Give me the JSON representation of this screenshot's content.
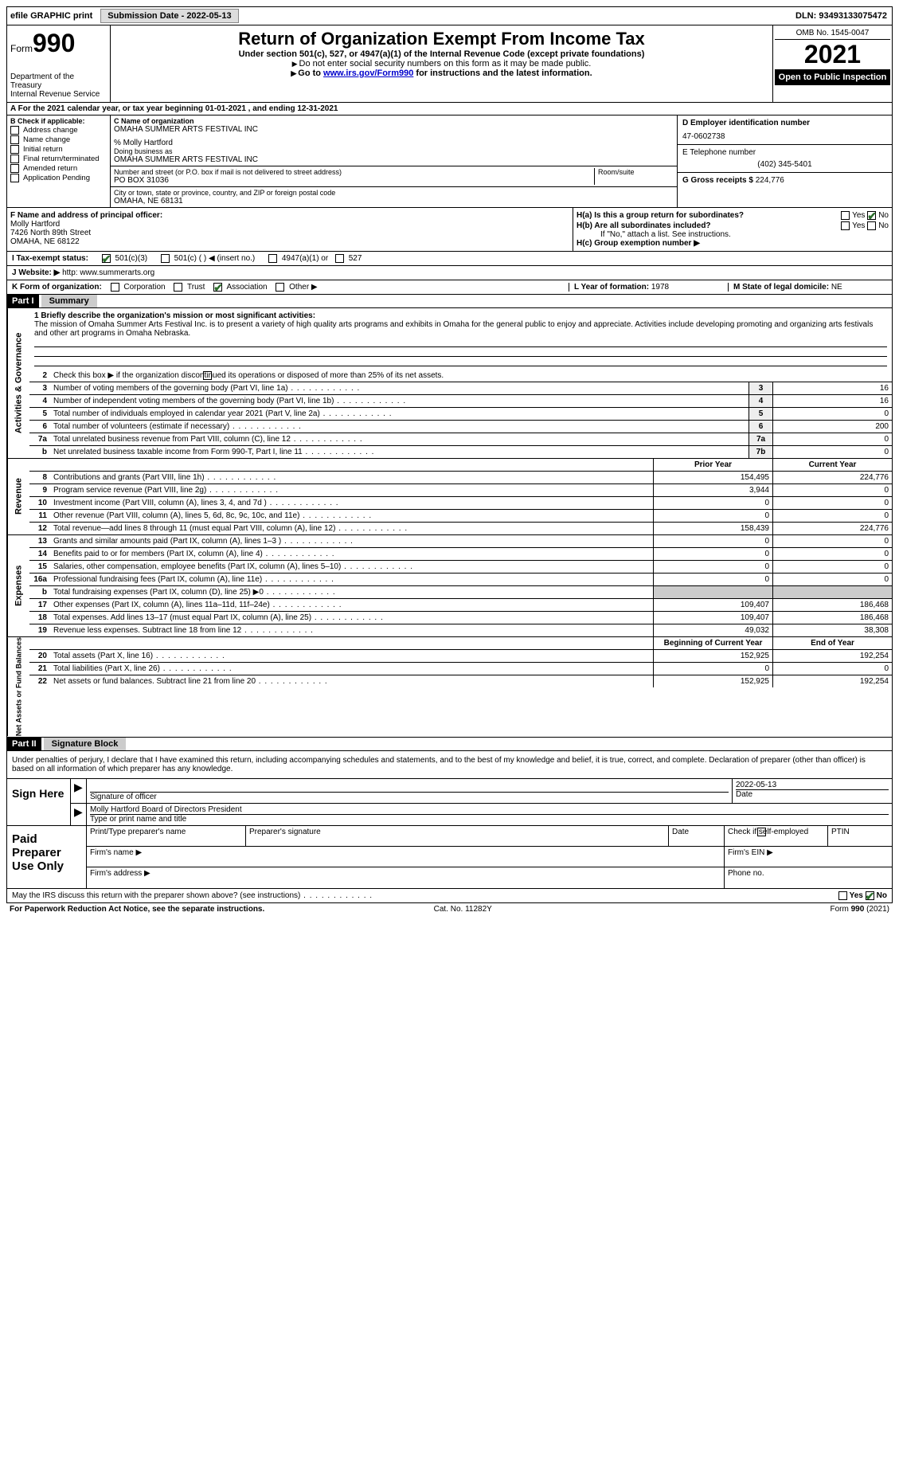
{
  "topbar": {
    "efile": "efile GRAPHIC print",
    "submission_btn": "Submission Date - 2022-05-13",
    "dln": "DLN: 93493133075472"
  },
  "header": {
    "form_label": "Form",
    "form_number": "990",
    "dept": "Department of the Treasury",
    "irs": "Internal Revenue Service",
    "title": "Return of Organization Exempt From Income Tax",
    "subtitle": "Under section 501(c), 527, or 4947(a)(1) of the Internal Revenue Code (except private foundations)",
    "note1": "Do not enter social security numbers on this form as it may be made public.",
    "note2_pre": "Go to ",
    "note2_link": "www.irs.gov/Form990",
    "note2_post": " for instructions and the latest information.",
    "omb": "OMB No. 1545-0047",
    "year": "2021",
    "open": "Open to Public Inspection"
  },
  "taxyear": {
    "text_a": "A For the 2021 calendar year, or tax year beginning ",
    "begin": "01-01-2021",
    "mid": "   , and ending ",
    "end": "12-31-2021"
  },
  "colB": {
    "label": "B Check if applicable:",
    "items": [
      "Address change",
      "Name change",
      "Initial return",
      "Final return/terminated",
      "Amended return",
      "Application Pending"
    ]
  },
  "colC": {
    "name_label": "C Name of organization",
    "name": "OMAHA SUMMER ARTS FESTIVAL INC",
    "care_label": "% Molly Hartford",
    "dba_label": "Doing business as",
    "dba": "OMAHA SUMMER ARTS FESTIVAL INC",
    "street_label": "Number and street (or P.O. box if mail is not delivered to street address)",
    "room_label": "Room/suite",
    "street": "PO BOX 31036",
    "city_label": "City or town, state or province, country, and ZIP or foreign postal code",
    "city": "OMAHA, NE  68131"
  },
  "colD": {
    "ein_label": "D Employer identification number",
    "ein": "47-0602738",
    "tel_label": "E Telephone number",
    "tel": "(402) 345-5401",
    "gross_label": "G Gross receipts $",
    "gross": "224,776"
  },
  "officer": {
    "label": "F  Name and address of principal officer:",
    "name": "Molly Hartford",
    "addr1": "7426 North 89th Street",
    "addr2": "OMAHA, NE  68122",
    "h_a": "H(a)  Is this a group return for subordinates?",
    "h_b": "H(b)  Are all subordinates included?",
    "h_note": "If \"No,\" attach a list. See instructions.",
    "h_c": "H(c)  Group exemption number ▶",
    "yes": "Yes",
    "no": "No"
  },
  "status": {
    "label": "I   Tax-exempt status:",
    "opt1": "501(c)(3)",
    "opt2": "501(c) (  ) ◀ (insert no.)",
    "opt3": "4947(a)(1) or",
    "opt4": "527"
  },
  "website": {
    "label": "J  Website: ▶",
    "value": " http: www.summerarts.org"
  },
  "korg": {
    "label": "K Form of organization:",
    "opts": [
      "Corporation",
      "Trust",
      "Association",
      "Other ▶"
    ],
    "assoc_checked": true,
    "l_label": "L Year of formation:",
    "l_val": "1978",
    "m_label": "M State of legal domicile:",
    "m_val": "NE"
  },
  "parts": {
    "p1": "Part I",
    "p1_title": "Summary",
    "p2": "Part II",
    "p2_title": "Signature Block"
  },
  "mission": {
    "label": "1  Briefly describe the organization's mission or most significant activities:",
    "text": "The mission of Omaha Summer Arts Festival Inc. is to present a variety of high quality arts programs and exhibits in Omaha for the general public to enjoy and appreciate. Activities include developing promoting and organizing arts festivals and other art programs in Omaha Nebraska."
  },
  "gov": {
    "line2": "Check this box ▶        if the organization discontinued its operations or disposed of more than 25% of its net assets.",
    "lines": [
      {
        "n": "3",
        "d": "Number of voting members of the governing body (Part VI, line 1a)",
        "box": "3",
        "v": "16"
      },
      {
        "n": "4",
        "d": "Number of independent voting members of the governing body (Part VI, line 1b)",
        "box": "4",
        "v": "16"
      },
      {
        "n": "5",
        "d": "Total number of individuals employed in calendar year 2021 (Part V, line 2a)",
        "box": "5",
        "v": "0"
      },
      {
        "n": "6",
        "d": "Total number of volunteers (estimate if necessary)",
        "box": "6",
        "v": "200"
      },
      {
        "n": "7a",
        "d": "Total unrelated business revenue from Part VIII, column (C), line 12",
        "box": "7a",
        "v": "0"
      },
      {
        "n": "b",
        "d": "Net unrelated business taxable income from Form 990-T, Part I, line 11",
        "box": "7b",
        "v": "0"
      }
    ]
  },
  "colheads": {
    "prior": "Prior Year",
    "current": "Current Year"
  },
  "revenue": [
    {
      "n": "8",
      "d": "Contributions and grants (Part VIII, line 1h)",
      "p": "154,495",
      "c": "224,776"
    },
    {
      "n": "9",
      "d": "Program service revenue (Part VIII, line 2g)",
      "p": "3,944",
      "c": "0"
    },
    {
      "n": "10",
      "d": "Investment income (Part VIII, column (A), lines 3, 4, and 7d )",
      "p": "0",
      "c": "0"
    },
    {
      "n": "11",
      "d": "Other revenue (Part VIII, column (A), lines 5, 6d, 8c, 9c, 10c, and 11e)",
      "p": "0",
      "c": "0"
    },
    {
      "n": "12",
      "d": "Total revenue—add lines 8 through 11 (must equal Part VIII, column (A), line 12)",
      "p": "158,439",
      "c": "224,776"
    }
  ],
  "expenses": [
    {
      "n": "13",
      "d": "Grants and similar amounts paid (Part IX, column (A), lines 1–3 )",
      "p": "0",
      "c": "0"
    },
    {
      "n": "14",
      "d": "Benefits paid to or for members (Part IX, column (A), line 4)",
      "p": "0",
      "c": "0"
    },
    {
      "n": "15",
      "d": "Salaries, other compensation, employee benefits (Part IX, column (A), lines 5–10)",
      "p": "0",
      "c": "0"
    },
    {
      "n": "16a",
      "d": "Professional fundraising fees (Part IX, column (A), line 11e)",
      "p": "0",
      "c": "0"
    },
    {
      "n": "b",
      "d": "Total fundraising expenses (Part IX, column (D), line 25) ▶0",
      "p": "",
      "c": ""
    },
    {
      "n": "17",
      "d": "Other expenses (Part IX, column (A), lines 11a–11d, 11f–24e)",
      "p": "109,407",
      "c": "186,468"
    },
    {
      "n": "18",
      "d": "Total expenses. Add lines 13–17 (must equal Part IX, column (A), line 25)",
      "p": "109,407",
      "c": "186,468"
    },
    {
      "n": "19",
      "d": "Revenue less expenses. Subtract line 18 from line 12",
      "p": "49,032",
      "c": "38,308"
    }
  ],
  "colheads2": {
    "begin": "Beginning of Current Year",
    "end": "End of Year"
  },
  "netassets": [
    {
      "n": "20",
      "d": "Total assets (Part X, line 16)",
      "p": "152,925",
      "c": "192,254"
    },
    {
      "n": "21",
      "d": "Total liabilities (Part X, line 26)",
      "p": "0",
      "c": "0"
    },
    {
      "n": "22",
      "d": "Net assets or fund balances. Subtract line 21 from line 20",
      "p": "152,925",
      "c": "192,254"
    }
  ],
  "vtabs": {
    "gov": "Activities & Governance",
    "rev": "Revenue",
    "exp": "Expenses",
    "net": "Net Assets or Fund Balances"
  },
  "sig": {
    "declare": "Under penalties of perjury, I declare that I have examined this return, including accompanying schedules and statements, and to the best of my knowledge and belief, it is true, correct, and complete. Declaration of preparer (other than officer) is based on all information of which preparer has any knowledge.",
    "sign_here": "Sign Here",
    "sig_officer": "Signature of officer",
    "date_label": "Date",
    "date": "2022-05-13",
    "name_title": "Molly Hartford  Board of Directors President",
    "type_name": "Type or print name and title"
  },
  "paid": {
    "title": "Paid Preparer Use Only",
    "h1": "Print/Type preparer's name",
    "h2": "Preparer's signature",
    "h3": "Date",
    "h4": "Check         if self-employed",
    "h5": "PTIN",
    "firm_name": "Firm's name    ▶",
    "firm_ein": "Firm's EIN ▶",
    "firm_addr": "Firm's address ▶",
    "phone": "Phone no."
  },
  "discuss": {
    "text": "May the IRS discuss this return with the preparer shown above? (see instructions)",
    "yes": "Yes",
    "no": "No"
  },
  "footer": {
    "left": "For Paperwork Reduction Act Notice, see the separate instructions.",
    "mid": "Cat. No. 11282Y",
    "right": "Form 990 (2021)"
  }
}
